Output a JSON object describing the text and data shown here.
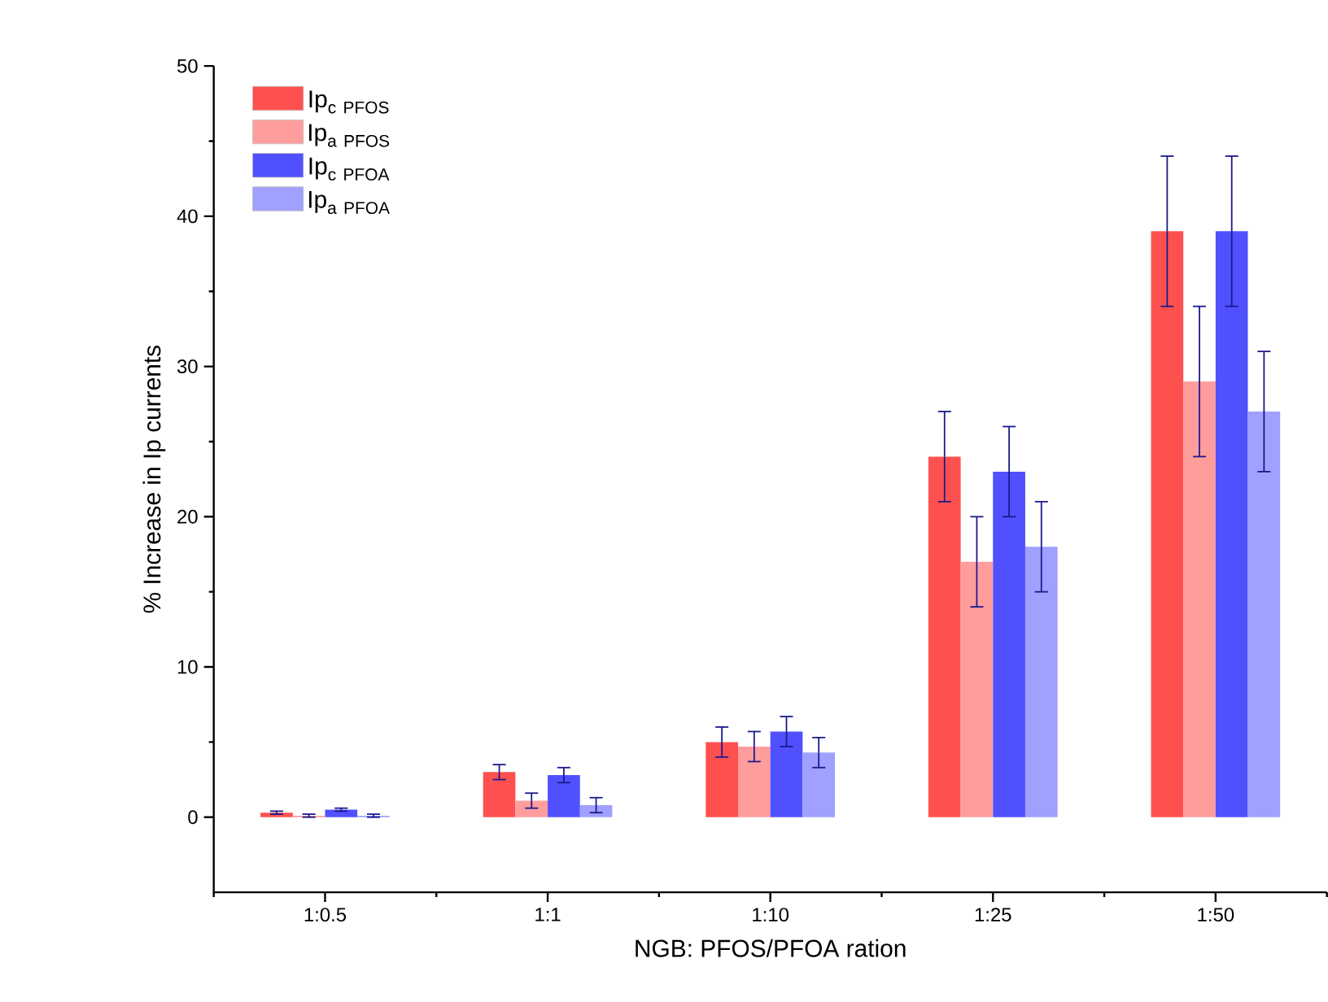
{
  "chart_data": {
    "type": "bar",
    "xlabel": "NGB: PFOS/PFOA ration",
    "ylabel": "% Increase in Ip currents",
    "categories": [
      "1:0.5",
      "1:1",
      "1:10",
      "1:25",
      "1:50"
    ],
    "series": [
      {
        "name": "\\mathrm{Ip}_{\\mathrm{c\\ PFOS}}",
        "color": "#ff5050",
        "values": [
          0.3,
          3.0,
          5.0,
          24,
          39
        ],
        "errors": [
          0.1,
          0.5,
          1.0,
          3,
          5
        ]
      },
      {
        "name": "\\mathrm{Ip}_{\\mathrm{a\\ PFOS}}",
        "color": "#ff9d9d",
        "values": [
          0.1,
          1.1,
          4.7,
          17,
          29
        ],
        "errors": [
          0.1,
          0.5,
          1.0,
          3,
          5
        ]
      },
      {
        "name": "\\mathrm{Ip}_{\\mathrm{c\\ PFOA}}",
        "color": "#5050ff",
        "values": [
          0.5,
          2.8,
          5.7,
          23,
          39
        ],
        "errors": [
          0.1,
          0.5,
          1.0,
          3,
          5
        ]
      },
      {
        "name": "\\mathrm{Ip}_{\\mathrm{a\\ PFOA}}",
        "color": "#a0a0ff",
        "values": [
          0.1,
          0.8,
          4.3,
          18,
          27
        ],
        "errors": [
          0.1,
          0.5,
          1.0,
          3,
          4
        ]
      }
    ],
    "ylim": [
      -5,
      50
    ],
    "yticks": [
      0,
      10,
      20,
      30,
      40,
      50
    ],
    "legend": "top left"
  }
}
